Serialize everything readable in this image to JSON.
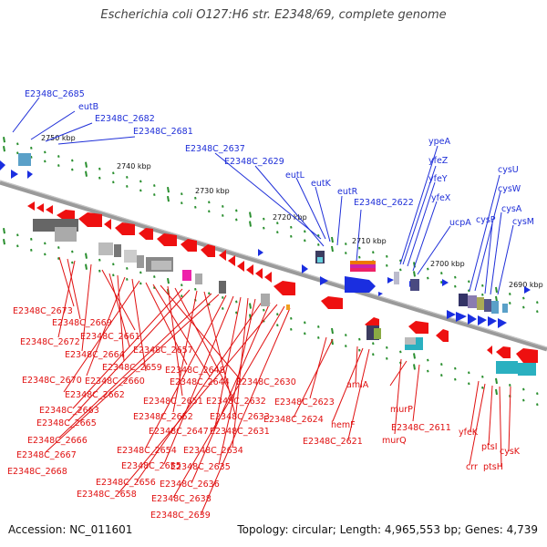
{
  "title": "Escherichia coli O127:H6 str. E2348/69, complete genome",
  "footer": {
    "accession": "Accession: NC_011601",
    "summary": "Topology: circular; Length: 4,965,553 bp; Genes: 4,739"
  },
  "colors": {
    "forward_gene": "#1a2ee0",
    "reverse_gene": "#ee1010",
    "axis": "#7a7a7a",
    "tick": "#1f8a2a",
    "label_blue": "#1f2fd8",
    "label_red": "#e01010"
  },
  "axis_ticks": [
    "2750 kbp",
    "2740 kbp",
    "2730 kbp",
    "2720 kbp",
    "2710 kbp",
    "2700 kbp",
    "2690 kbp"
  ],
  "top_labels": [
    "E2348C_2685",
    "eutB",
    "E2348C_2682",
    "E2348C_2681",
    "E2348C_2637",
    "E2348C_2629",
    "eutL",
    "eutK",
    "eutR",
    "E2348C_2622",
    "ypeA",
    "yfeZ",
    "yfeY",
    "yfeX",
    "ucpA",
    "cysU",
    "cysW",
    "cysP",
    "cysA",
    "cysM"
  ],
  "bottom_labels": [
    "E2348C_2673",
    "E2348C_2669",
    "E2348C_2672",
    "E2348C_2661",
    "E2348C_2664",
    "E2348C_2657",
    "E2348C_2659",
    "E2348C_2670",
    "E2348C_2660",
    "E2348C_2648",
    "E2348C_2662",
    "E2348C_2644",
    "E2348C_2630",
    "E2348C_2651",
    "E2348C_2632",
    "E2348C_2663",
    "E2348C_2665",
    "E2348C_2652",
    "E2348C_2633",
    "E2348C_2623",
    "E2348C_2624",
    "amiA",
    "hemF",
    "murP",
    "E2348C_2611",
    "E2348C_2647",
    "E2348C_2631",
    "E2348C_2666",
    "E2348C_2621",
    "murQ",
    "yfeK",
    "E2348C_2654",
    "E2348C_2634",
    "E2348C_2667",
    "ptsI",
    "cysK",
    "E2348C_2655",
    "E2348C_2635",
    "E2348C_2668",
    "crr",
    "ptsH",
    "E2348C_2656",
    "E2348C_2636",
    "E2348C_2658",
    "E2348C_2638",
    "E2348C_2639"
  ]
}
